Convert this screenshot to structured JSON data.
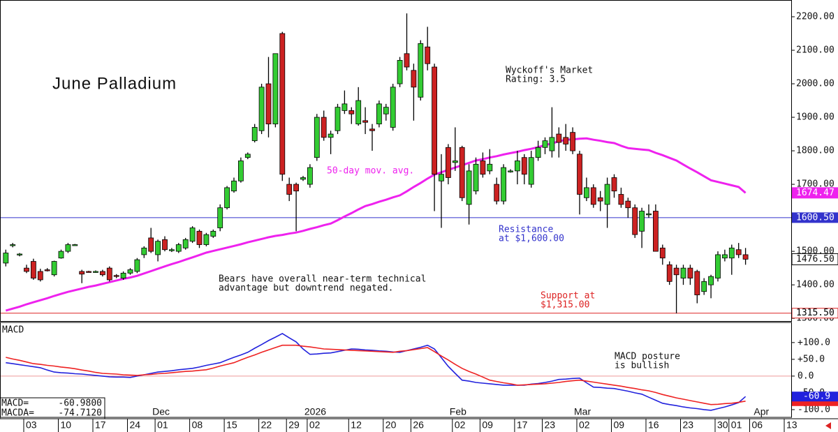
{
  "chart_data": [
    {
      "type": "candlestick",
      "title": "June Palladium",
      "annotations": [
        {
          "lines": [
            "Wyckoff's Market",
            "Rating: 3.5"
          ]
        },
        {
          "lines": [
            "Bears have overall near-term technical",
            "advantage but downtrend negated."
          ]
        }
      ],
      "up_color": "#33cc33",
      "down_color": "#cc2222",
      "open": [
        1465,
        1518,
        1490,
        1450,
        1470,
        1440,
        1445,
        1430,
        1480,
        1500,
        1520,
        1440,
        1440,
        1440,
        1440,
        1450,
        1428,
        1420,
        1435,
        1440,
        1490,
        1540,
        1490,
        1535,
        1505,
        1500,
        1510,
        1530,
        1560,
        1520,
        1545,
        1570,
        1630,
        1680,
        1710,
        1780,
        1830,
        1860,
        2000,
        1880,
        2150,
        1700,
        1700,
        1715,
        1700,
        1780,
        1900,
        1840,
        1860,
        1920,
        1920,
        1880,
        1890,
        1865,
        1880,
        1910,
        1870,
        2000,
        2090,
        2040,
        1960,
        2110,
        2050,
        1710,
        1810,
        1765,
        1810,
        1640,
        1680,
        1770,
        1740,
        1700,
        1650,
        1740,
        1740,
        1780,
        1700,
        1780,
        1810,
        1800,
        1850,
        1840,
        1855,
        1790,
        1660,
        1690,
        1660,
        1640,
        1720,
        1670,
        1650,
        1630,
        1560,
        1610,
        1620,
        1510,
        1460,
        1450,
        1420,
        1450,
        1440,
        1380,
        1400,
        1420,
        1480,
        1480,
        1505,
        1490
      ],
      "high": [
        1505,
        1525,
        1495,
        1460,
        1478,
        1448,
        1450,
        1472,
        1505,
        1525,
        1522,
        1445,
        1442,
        1443,
        1445,
        1455,
        1432,
        1440,
        1450,
        1480,
        1515,
        1570,
        1535,
        1545,
        1510,
        1525,
        1540,
        1575,
        1565,
        1555,
        1565,
        1640,
        1695,
        1720,
        1780,
        1795,
        1880,
        2000,
        2080,
        2090,
        2155,
        1720,
        1705,
        1725,
        1760,
        1910,
        1920,
        1860,
        1940,
        1980,
        1930,
        1990,
        1930,
        1880,
        1950,
        1940,
        2000,
        2080,
        2210,
        2060,
        2130,
        2170,
        2060,
        1790,
        1820,
        1870,
        1815,
        1760,
        1780,
        1795,
        1805,
        1720,
        1760,
        1745,
        1800,
        1790,
        1800,
        1830,
        1840,
        1930,
        1870,
        1880,
        1870,
        1800,
        1720,
        1700,
        1680,
        1720,
        1730,
        1690,
        1660,
        1640,
        1630,
        1640,
        1640,
        1520,
        1470,
        1460,
        1460,
        1460,
        1445,
        1420,
        1430,
        1500,
        1505,
        1520,
        1525,
        1510
      ],
      "low": [
        1455,
        1512,
        1485,
        1435,
        1415,
        1410,
        1440,
        1425,
        1478,
        1495,
        1518,
        1405,
        1437,
        1436,
        1425,
        1410,
        1420,
        1415,
        1430,
        1435,
        1480,
        1495,
        1470,
        1500,
        1498,
        1495,
        1505,
        1525,
        1510,
        1515,
        1540,
        1560,
        1625,
        1675,
        1705,
        1775,
        1825,
        1850,
        1840,
        1870,
        1710,
        1650,
        1560,
        1710,
        1690,
        1770,
        1830,
        1790,
        1850,
        1910,
        1880,
        1875,
        1850,
        1800,
        1870,
        1890,
        1860,
        1990,
        2040,
        1890,
        1950,
        2040,
        1620,
        1570,
        1700,
        1740,
        1650,
        1580,
        1670,
        1720,
        1730,
        1640,
        1640,
        1735,
        1700,
        1700,
        1690,
        1770,
        1790,
        1780,
        1780,
        1800,
        1790,
        1610,
        1650,
        1630,
        1620,
        1570,
        1660,
        1630,
        1600,
        1540,
        1510,
        1600,
        1500,
        1460,
        1400,
        1315,
        1400,
        1400,
        1345,
        1370,
        1360,
        1410,
        1470,
        1430,
        1480,
        1460
      ],
      "close": [
        1495,
        1520,
        1492,
        1440,
        1420,
        1415,
        1443,
        1470,
        1500,
        1520,
        1520,
        1432,
        1438,
        1440,
        1430,
        1415,
        1425,
        1435,
        1445,
        1475,
        1510,
        1500,
        1530,
        1505,
        1505,
        1520,
        1535,
        1570,
        1520,
        1550,
        1560,
        1630,
        1690,
        1710,
        1770,
        1790,
        1870,
        1990,
        1880,
        2090,
        1730,
        1670,
        1680,
        1720,
        1750,
        1900,
        1840,
        1850,
        1930,
        1940,
        1910,
        1950,
        1885,
        1860,
        1940,
        1930,
        1990,
        2070,
        2050,
        1990,
        2120,
        2060,
        1730,
        1730,
        1720,
        1770,
        1660,
        1740,
        1760,
        1730,
        1760,
        1650,
        1750,
        1740,
        1770,
        1730,
        1780,
        1810,
        1830,
        1840,
        1825,
        1820,
        1800,
        1670,
        1690,
        1640,
        1650,
        1700,
        1680,
        1640,
        1630,
        1550,
        1620,
        1612,
        1500,
        1480,
        1410,
        1430,
        1450,
        1420,
        1370,
        1410,
        1425,
        1490,
        1490,
        1510,
        1490,
        1476.5
      ],
      "last_label": "1476.50",
      "ma": {
        "name": "50-day mov. avg.",
        "color": "#ee22ee",
        "last_label": "1674.47",
        "values": [
          1323,
          1329,
          1335,
          1342,
          1348,
          1354,
          1360,
          1367,
          1373,
          1379,
          1384,
          1389,
          1394,
          1398,
          1403,
          1408,
          1413,
          1418,
          1422,
          1427,
          1434,
          1441,
          1448,
          1455,
          1462,
          1468,
          1475,
          1482,
          1489,
          1496,
          1501,
          1506,
          1511,
          1516,
          1521,
          1527,
          1532,
          1537,
          1542,
          1546,
          1549,
          1553,
          1556,
          1561,
          1567,
          1572,
          1578,
          1583,
          1593,
          1604,
          1614,
          1625,
          1635,
          1641,
          1648,
          1654,
          1661,
          1667,
          1679,
          1692,
          1704,
          1717,
          1729,
          1736,
          1743,
          1750,
          1757,
          1764,
          1771,
          1775,
          1780,
          1784,
          1789,
          1793,
          1797,
          1802,
          1806,
          1811,
          1817,
          1822,
          1828,
          1833,
          1834,
          1836,
          1837,
          1833,
          1830,
          1826,
          1823,
          1815,
          1808,
          1806,
          1804,
          1802,
          1794,
          1787,
          1779,
          1771,
          1759,
          1747,
          1736,
          1724,
          1712,
          1707,
          1702,
          1697,
          1692,
          1674.47
        ]
      },
      "hlines": [
        {
          "value": 1600.5,
          "label": "1600.50",
          "color": "#3333cc",
          "note": [
            "Resistance",
            "at $1,600.00"
          ]
        },
        {
          "value": 1315.5,
          "label": "1315.50",
          "color": "#dd2222",
          "note": [
            "Support at",
            "$1,315.00"
          ]
        }
      ],
      "ylim": [
        1292,
        2250
      ],
      "yticks": [
        {
          "value": 1300,
          "label": "1300.00"
        },
        {
          "value": 1400,
          "label": "1400.00"
        },
        {
          "value": 1500,
          "label": "1500.00"
        },
        {
          "value": 1600,
          "label": "1600.00"
        },
        {
          "value": 1700,
          "label": "1700.00"
        },
        {
          "value": 1800,
          "label": "1800.00"
        },
        {
          "value": 1900,
          "label": "1900.00"
        },
        {
          "value": 2000,
          "label": "2000.00"
        },
        {
          "value": 2100,
          "label": "2100.00"
        },
        {
          "value": 2200,
          "label": "2200.00"
        }
      ]
    },
    {
      "type": "line",
      "title": "MACD",
      "annotation": [
        "MACD posture",
        "is bullish"
      ],
      "categories": [
        null,
        null,
        null,
        "03",
        null,
        null,
        null,
        null,
        "10",
        null,
        null,
        null,
        null,
        "17",
        null,
        null,
        null,
        null,
        "24",
        null,
        null,
        null,
        "01",
        null,
        null,
        null,
        null,
        "08",
        null,
        null,
        null,
        null,
        "15",
        null,
        null,
        null,
        null,
        "22",
        null,
        null,
        null,
        "29",
        null,
        null,
        "02",
        null,
        null,
        null,
        null,
        null,
        "12",
        null,
        null,
        null,
        null,
        "20",
        null,
        null,
        null,
        "26",
        null,
        null,
        null,
        null,
        null,
        "02",
        null,
        null,
        null,
        "09",
        null,
        null,
        null,
        null,
        "17",
        null,
        null,
        null,
        "23",
        null,
        null,
        null,
        null,
        "02",
        null,
        null,
        null,
        null,
        "09",
        null,
        null,
        null,
        null,
        "16",
        null,
        null,
        null,
        null,
        "23",
        null,
        null,
        null,
        null,
        "30",
        null,
        "01",
        null,
        null,
        "06",
        null,
        null,
        null,
        null,
        "13"
      ],
      "months": [
        null,
        null,
        null,
        null,
        null,
        null,
        null,
        null,
        null,
        null,
        null,
        null,
        null,
        null,
        null,
        null,
        null,
        null,
        null,
        null,
        null,
        null,
        "Dec",
        null,
        null,
        null,
        null,
        null,
        null,
        null,
        null,
        null,
        null,
        null,
        null,
        null,
        null,
        null,
        null,
        null,
        null,
        null,
        null,
        null,
        "2026",
        null,
        null,
        null,
        null,
        null,
        null,
        null,
        null,
        null,
        null,
        null,
        null,
        null,
        null,
        null,
        null,
        null,
        null,
        null,
        null,
        "Feb",
        null,
        null,
        null,
        null,
        null,
        null,
        null,
        null,
        null,
        null,
        null,
        null,
        null,
        null,
        null,
        null,
        null,
        "Mar",
        null,
        null,
        null,
        null,
        null,
        null,
        null,
        null,
        null,
        null,
        null,
        null,
        null,
        null,
        null,
        null,
        null,
        null,
        null,
        null,
        null,
        null,
        null,
        null,
        null,
        "Apr",
        null,
        null,
        null,
        null,
        null
      ],
      "series": [
        {
          "name": "MACD=",
          "color": "#2222dd",
          "value_label": "-60.9800",
          "last_label": "-60.9",
          "values": [
            40,
            37,
            34,
            31,
            28,
            25,
            18,
            12,
            10,
            9,
            7,
            6,
            4,
            2,
            0,
            -2,
            -3,
            -3,
            -4,
            0,
            4,
            8,
            12,
            14,
            16,
            19,
            21,
            23,
            27,
            32,
            36,
            40,
            48,
            56,
            63,
            71,
            83,
            94,
            106,
            116,
            127,
            114,
            102,
            81,
            65,
            66,
            68,
            69,
            73,
            77,
            81,
            80,
            78,
            77,
            75,
            74,
            72,
            71,
            76,
            81,
            86,
            92,
            81,
            55,
            29,
            8,
            -12,
            -15,
            -19,
            -21,
            -23,
            -25,
            -27,
            -27,
            -27,
            -27,
            -24,
            -22,
            -19,
            -15,
            -10,
            -9,
            -7,
            -6,
            -20,
            -33,
            -34,
            -36,
            -37,
            -41,
            -45,
            -50,
            -54,
            -63,
            -72,
            -81,
            -85,
            -88,
            -92,
            -95,
            -97,
            -100,
            -102,
            -97,
            -92,
            -86,
            -79,
            -60.98,
            null,
            null,
            null,
            null,
            null,
            null
          ]
        },
        {
          "name": "MACDA=",
          "color": "#ee2222",
          "value_label": "-74.7120",
          "values": [
            56,
            51,
            47,
            42,
            37,
            35,
            32,
            30,
            27,
            25,
            22,
            18,
            15,
            11,
            8,
            7,
            6,
            4,
            3,
            2,
            4,
            5,
            7,
            8,
            10,
            12,
            14,
            15,
            17,
            19,
            24,
            30,
            35,
            40,
            48,
            56,
            63,
            71,
            78,
            85,
            92,
            92,
            92,
            89,
            87,
            84,
            81,
            80,
            79,
            78,
            77,
            76,
            75,
            74,
            73,
            72,
            71,
            74,
            76,
            79,
            82,
            85,
            73,
            60,
            48,
            35,
            23,
            14,
            6,
            -3,
            -12,
            -16,
            -20,
            -23,
            -27,
            -26,
            -25,
            -24,
            -23,
            -21,
            -19,
            -16,
            -14,
            -12,
            -15,
            -18,
            -21,
            -24,
            -27,
            -30,
            -34,
            -37,
            -41,
            -44,
            -49,
            -55,
            -60,
            -65,
            -69,
            -73,
            -77,
            -81,
            -85,
            -84,
            -82,
            -81,
            -78,
            -74.712,
            null,
            null,
            null,
            null,
            null,
            null
          ]
        }
      ],
      "ylim": [
        -123,
        160
      ],
      "yticks": [
        {
          "value": 100,
          "label": "+100.0"
        },
        {
          "value": 50,
          "label": "+50.0"
        },
        {
          "value": 0,
          "label": "0.0"
        },
        {
          "value": -50,
          "label": "-50.0"
        },
        {
          "value": -100,
          "label": "-100.0"
        }
      ]
    }
  ]
}
